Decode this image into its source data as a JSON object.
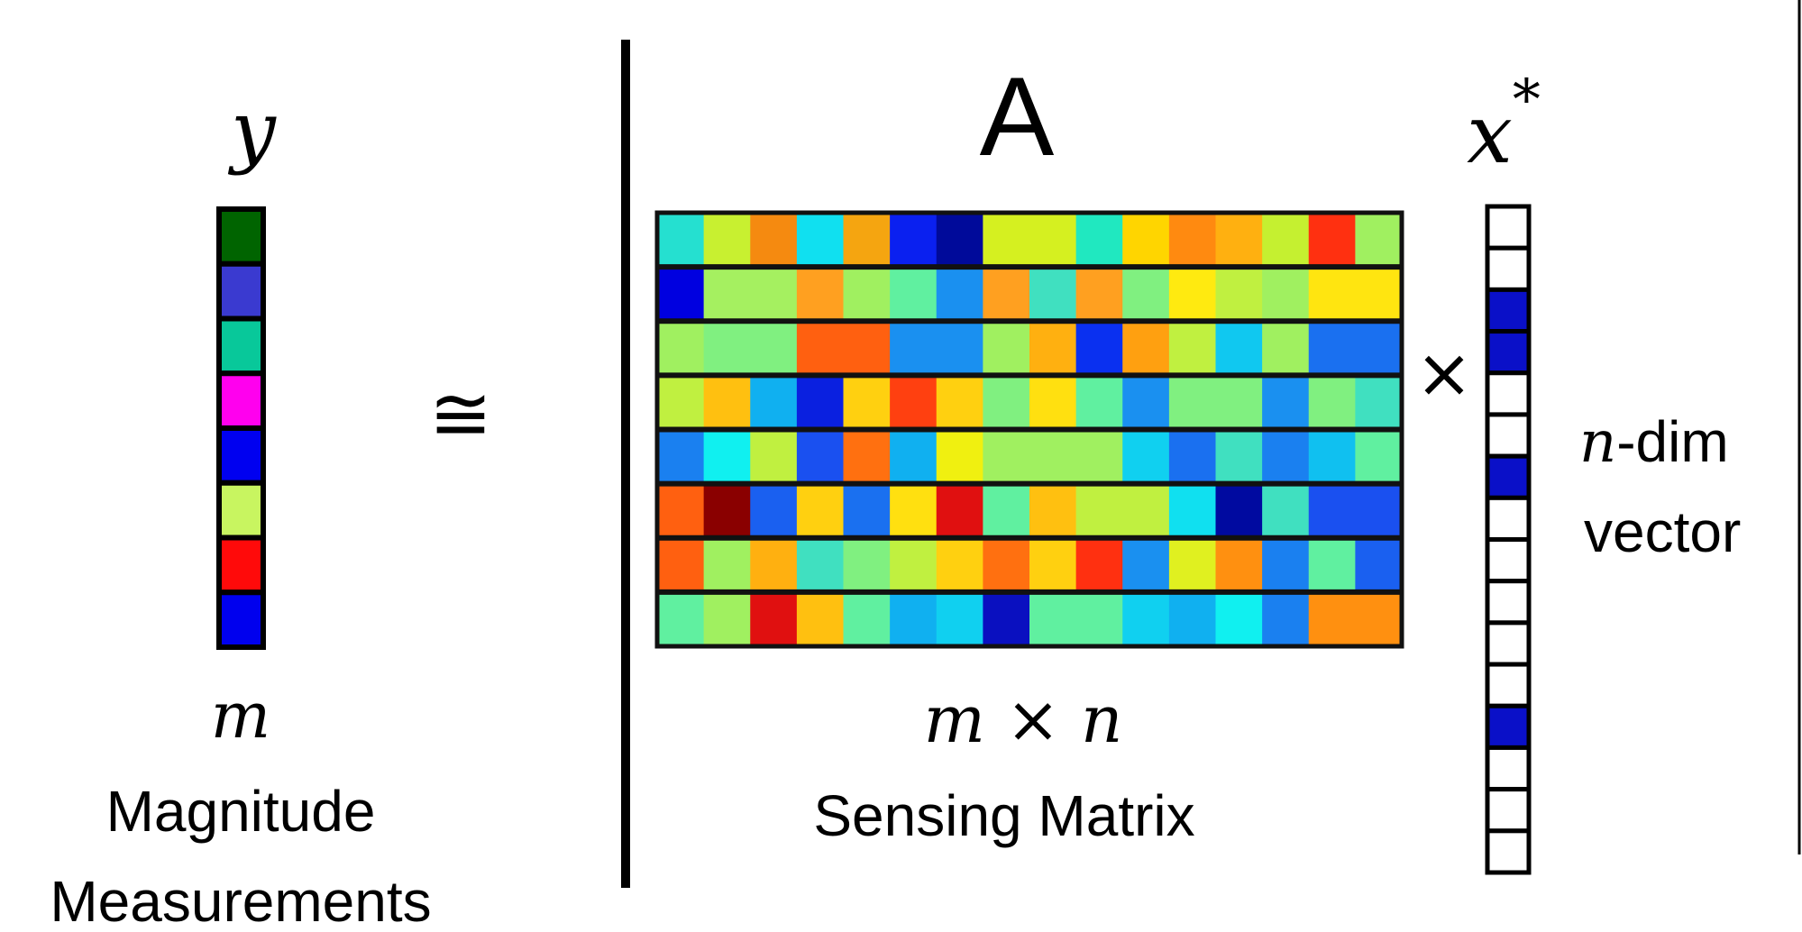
{
  "y_vector": {
    "symbol": "y",
    "dimension_label": "m",
    "caption_line1": "Magnitude",
    "caption_line2": "Measurements",
    "cells": [
      "#006400",
      "#3a3ad0",
      "#08c89a",
      "#ff00ee",
      "#0000f0",
      "#c8f560",
      "#ff0a0a",
      "#0000ee"
    ]
  },
  "approx_symbol": "≅",
  "matrix": {
    "symbol": "A",
    "dimension_label": "m × n",
    "caption": "Sensing Matrix",
    "rows": [
      [
        "#25e0d0",
        "#c8f030",
        "#f58a10",
        "#10e0f0",
        "#f5a510",
        "#0a20f0",
        "#000a9a",
        "#d5f020",
        "#d5f020",
        "#20e8c0",
        "#ffd500",
        "#ff8a10",
        "#ffb010",
        "#c5f030",
        "#ff3010",
        "#a0f060"
      ],
      [
        "#0000e0",
        "#a5f060",
        "#a5f060",
        "#ffa020",
        "#a0f060",
        "#60f0a0",
        "#1a90f0",
        "#ffa020",
        "#40e0c0",
        "#ffa020",
        "#80f080",
        "#ffea10",
        "#c0f040",
        "#a0f060",
        "#ffe510",
        "#ffe510"
      ],
      [
        "#a0f060",
        "#80f080",
        "#80f080",
        "#ff6010",
        "#ff6010",
        "#1a90f0",
        "#1a90f0",
        "#a0f060",
        "#ffb010",
        "#0a30f0",
        "#ffa010",
        "#c0f040",
        "#10c8f0",
        "#a0f060",
        "#1a70f0",
        "#1a70f0"
      ],
      [
        "#c0f040",
        "#ffc010",
        "#10b0f0",
        "#0a20e0",
        "#ffd010",
        "#ff4010",
        "#ffd010",
        "#80f080",
        "#ffe010",
        "#60f0a0",
        "#1a90f0",
        "#80f080",
        "#80f080",
        "#1a90f0",
        "#80f080",
        "#40e0c0"
      ],
      [
        "#1a80f0",
        "#10f0f0",
        "#c0f040",
        "#1a50f0",
        "#ff7010",
        "#10b0f0",
        "#f0f010",
        "#a0f060",
        "#a0f060",
        "#a0f060",
        "#10d0f0",
        "#1a70f0",
        "#40e0c0",
        "#1a80f0",
        "#10c0f0",
        "#60f0a0"
      ],
      [
        "#ff6010",
        "#8a0000",
        "#1a60f0",
        "#ffd010",
        "#1a70f0",
        "#ffe010",
        "#e01010",
        "#60f0a0",
        "#ffc010",
        "#c0f040",
        "#c0f040",
        "#10e0f0",
        "#000aa0",
        "#40e0c0",
        "#1a50f0",
        "#1a50f0"
      ],
      [
        "#ff6010",
        "#a0f060",
        "#ffb010",
        "#40e0c0",
        "#80f080",
        "#c0f040",
        "#ffd010",
        "#ff7010",
        "#ffd010",
        "#ff3010",
        "#1a90f0",
        "#e0f020",
        "#ff9010",
        "#1a80f0",
        "#60f0a0",
        "#1a60f0"
      ],
      [
        "#60f0a0",
        "#a0f060",
        "#e01010",
        "#ffc010",
        "#60f0a0",
        "#10b0f0",
        "#10d0f0",
        "#0a10c0",
        "#60f0a0",
        "#60f0a0",
        "#10d0f0",
        "#10b0f0",
        "#10f0f0",
        "#1a80f0",
        "#ff9010",
        "#ff9010"
      ]
    ]
  },
  "times_symbol": "×",
  "x_vector": {
    "symbol": "x",
    "superscript": "*",
    "cells": [
      "#ffffff",
      "#ffffff",
      "#0a10c8",
      "#0a10c8",
      "#ffffff",
      "#ffffff",
      "#0a10c8",
      "#ffffff",
      "#ffffff",
      "#ffffff",
      "#ffffff",
      "#ffffff",
      "#0a10c8",
      "#ffffff",
      "#ffffff",
      "#ffffff"
    ]
  },
  "n_dim_label": {
    "symbol": "n",
    "suffix": "-dim",
    "line2": "vector"
  }
}
